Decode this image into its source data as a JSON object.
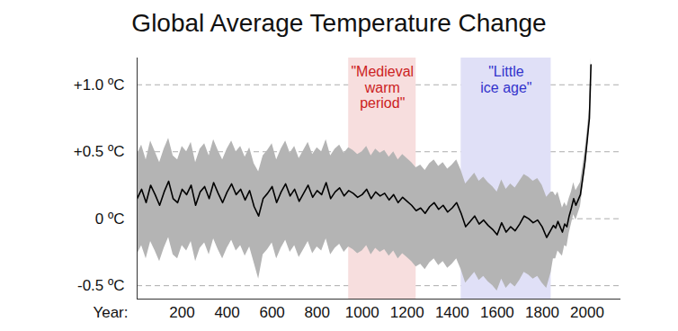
{
  "chart_data": {
    "type": "line",
    "title": "Global Average Temperature Change",
    "x_label": "Year:",
    "color": "#000000",
    "grid": true,
    "xlim": [
      0,
      2150
    ],
    "ylim": [
      -0.6,
      1.2
    ],
    "xticks": [
      200,
      400,
      600,
      800,
      1000,
      1200,
      1400,
      1600,
      1800,
      2000
    ],
    "yticks": [
      {
        "value": 1.0,
        "label": "+1.0 ºC"
      },
      {
        "value": 0.5,
        "label": "+0.5 ºC"
      },
      {
        "value": 0,
        "label": "0 ºC"
      },
      {
        "value": -0.5,
        "label": "-0.5 ºC"
      }
    ],
    "x": [
      0,
      20,
      40,
      60,
      80,
      100,
      120,
      140,
      160,
      180,
      200,
      220,
      240,
      260,
      280,
      300,
      320,
      340,
      360,
      380,
      400,
      420,
      440,
      460,
      480,
      500,
      520,
      540,
      560,
      580,
      600,
      620,
      640,
      660,
      680,
      700,
      720,
      740,
      760,
      780,
      800,
      820,
      840,
      860,
      880,
      900,
      920,
      940,
      960,
      980,
      1000,
      1020,
      1040,
      1060,
      1080,
      1100,
      1120,
      1140,
      1160,
      1180,
      1200,
      1220,
      1240,
      1260,
      1280,
      1300,
      1320,
      1340,
      1360,
      1380,
      1400,
      1420,
      1440,
      1460,
      1480,
      1500,
      1520,
      1540,
      1560,
      1580,
      1600,
      1620,
      1640,
      1660,
      1680,
      1700,
      1720,
      1740,
      1760,
      1780,
      1800,
      1820,
      1840,
      1850,
      1860,
      1870,
      1880,
      1890,
      1900,
      1910,
      1920,
      1930,
      1940,
      1950,
      1960,
      1970,
      1980,
      1990,
      2000,
      2010,
      2017
    ],
    "values": [
      0.15,
      0.22,
      0.12,
      0.25,
      0.18,
      0.1,
      0.2,
      0.28,
      0.15,
      0.12,
      0.22,
      0.18,
      0.25,
      0.1,
      0.2,
      0.24,
      0.15,
      0.27,
      0.19,
      0.12,
      0.2,
      0.26,
      0.18,
      0.22,
      0.14,
      0.21,
      0.09,
      0.02,
      0.15,
      0.19,
      0.24,
      0.12,
      0.2,
      0.26,
      0.17,
      0.22,
      0.13,
      0.19,
      0.25,
      0.16,
      0.21,
      0.18,
      0.27,
      0.15,
      0.2,
      0.23,
      0.17,
      0.21,
      0.19,
      0.16,
      0.18,
      0.22,
      0.15,
      0.2,
      0.17,
      0.19,
      0.14,
      0.18,
      0.12,
      0.16,
      0.13,
      0.1,
      0.06,
      0.08,
      0.04,
      0.09,
      0.12,
      0.07,
      0.1,
      0.05,
      0.08,
      0.12,
      0.04,
      -0.06,
      -0.02,
      0.02,
      -0.04,
      -0.01,
      -0.05,
      -0.08,
      -0.12,
      -0.03,
      -0.1,
      -0.06,
      -0.09,
      -0.04,
      0.02,
      0.0,
      -0.03,
      -0.01,
      -0.06,
      -0.14,
      -0.08,
      -0.05,
      -0.07,
      -0.02,
      -0.06,
      -0.1,
      -0.04,
      -0.06,
      0.02,
      0.08,
      0.15,
      0.1,
      0.14,
      0.18,
      0.3,
      0.42,
      0.58,
      0.75,
      1.15
    ],
    "upper": [
      0.48,
      0.55,
      0.44,
      0.58,
      0.5,
      0.42,
      0.52,
      0.6,
      0.47,
      0.44,
      0.54,
      0.5,
      0.57,
      0.42,
      0.52,
      0.56,
      0.47,
      0.59,
      0.51,
      0.44,
      0.52,
      0.58,
      0.5,
      0.54,
      0.46,
      0.53,
      0.41,
      0.35,
      0.47,
      0.51,
      0.56,
      0.44,
      0.52,
      0.58,
      0.49,
      0.54,
      0.45,
      0.51,
      0.57,
      0.48,
      0.53,
      0.5,
      0.59,
      0.47,
      0.52,
      0.55,
      0.49,
      0.53,
      0.51,
      0.48,
      0.5,
      0.54,
      0.47,
      0.52,
      0.49,
      0.51,
      0.46,
      0.5,
      0.44,
      0.48,
      0.45,
      0.42,
      0.38,
      0.4,
      0.36,
      0.41,
      0.44,
      0.39,
      0.42,
      0.37,
      0.4,
      0.44,
      0.36,
      0.26,
      0.3,
      0.34,
      0.28,
      0.31,
      0.27,
      0.24,
      0.2,
      0.29,
      0.22,
      0.26,
      0.23,
      0.28,
      0.33,
      0.31,
      0.28,
      0.3,
      0.25,
      0.16,
      0.2,
      0.2,
      0.17,
      0.2,
      0.14,
      0.08,
      0.12,
      0.09,
      0.15,
      0.2,
      0.27,
      0.21,
      0.24,
      0.27,
      0.38,
      0.5,
      0.65,
      0.82,
      1.2
    ],
    "lower": [
      -0.27,
      -0.2,
      -0.3,
      -0.17,
      -0.24,
      -0.32,
      -0.22,
      -0.14,
      -0.27,
      -0.3,
      -0.2,
      -0.24,
      -0.17,
      -0.32,
      -0.22,
      -0.18,
      -0.27,
      -0.15,
      -0.23,
      -0.3,
      -0.22,
      -0.16,
      -0.24,
      -0.2,
      -0.28,
      -0.21,
      -0.33,
      -0.45,
      -0.27,
      -0.23,
      -0.18,
      -0.3,
      -0.22,
      -0.16,
      -0.25,
      -0.2,
      -0.29,
      -0.23,
      -0.17,
      -0.26,
      -0.21,
      -0.24,
      -0.15,
      -0.27,
      -0.22,
      -0.19,
      -0.25,
      -0.21,
      -0.23,
      -0.26,
      -0.24,
      -0.2,
      -0.27,
      -0.22,
      -0.25,
      -0.23,
      -0.28,
      -0.24,
      -0.3,
      -0.26,
      -0.29,
      -0.32,
      -0.36,
      -0.34,
      -0.38,
      -0.33,
      -0.3,
      -0.35,
      -0.32,
      -0.37,
      -0.34,
      -0.3,
      -0.38,
      -0.48,
      -0.44,
      -0.4,
      -0.46,
      -0.43,
      -0.47,
      -0.5,
      -0.54,
      -0.45,
      -0.52,
      -0.48,
      -0.51,
      -0.46,
      -0.4,
      -0.42,
      -0.45,
      -0.43,
      -0.48,
      -0.52,
      -0.4,
      -0.3,
      -0.3,
      -0.24,
      -0.26,
      -0.28,
      -0.2,
      -0.21,
      -0.11,
      -0.04,
      0.03,
      -0.01,
      0.04,
      0.09,
      0.22,
      0.34,
      0.51,
      0.68,
      1.1
    ],
    "annotations": [
      {
        "text": "\"Medieval\nwarm\nperiod\"",
        "x0": 940,
        "x1": 1240,
        "color": "#cc2222"
      },
      {
        "text": "\"Little\nice age\"",
        "x0": 1440,
        "x1": 1840,
        "color": "#3333cc"
      }
    ]
  }
}
